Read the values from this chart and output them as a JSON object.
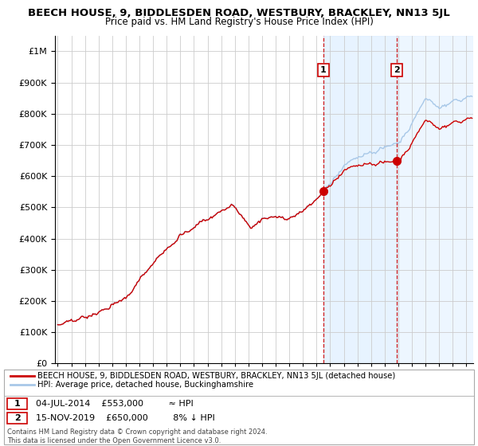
{
  "title": "BEECH HOUSE, 9, BIDDLESDEN ROAD, WESTBURY, BRACKLEY, NN13 5JL",
  "subtitle": "Price paid vs. HM Land Registry's House Price Index (HPI)",
  "hpi_label": "HPI: Average price, detached house, Buckinghamshire",
  "property_label": "BEECH HOUSE, 9, BIDDLESDEN ROAD, WESTBURY, BRACKLEY, NN13 5JL (detached house)",
  "legend_note1": "04-JUL-2014    £553,000         ≈ HPI",
  "legend_note2": "15-NOV-2019    £650,000         8% ↓ HPI",
  "copyright": "Contains HM Land Registry data © Crown copyright and database right 2024.\nThis data is licensed under the Open Government Licence v3.0.",
  "sale1_date": 2014.5,
  "sale1_price": 553000,
  "sale2_date": 2019.88,
  "sale2_price": 650000,
  "hpi_color": "#a8c8e8",
  "property_color": "#cc0000",
  "marker_color": "#cc0000",
  "highlight_color": "#ddeeff",
  "dashed_color": "#cc0000",
  "ylim": [
    0,
    1050000
  ],
  "xlim_start": 1995,
  "xlim_end": 2025.5,
  "background_color": "#ffffff",
  "grid_color": "#cccccc",
  "title_fontsize": 9.5,
  "subtitle_fontsize": 8.5
}
